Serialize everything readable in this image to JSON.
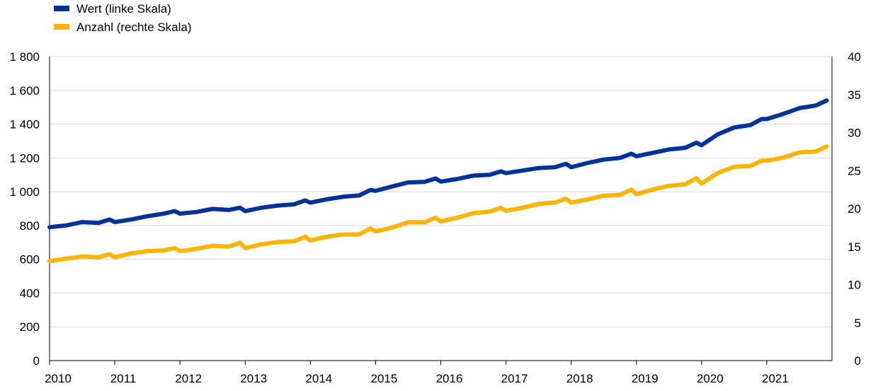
{
  "chart_data": {
    "type": "line",
    "legend_position": "top-left",
    "grid": true,
    "x_axis": {
      "range": [
        2010,
        2022
      ],
      "tick_labels": [
        "2010",
        "2011",
        "2012",
        "2013",
        "2014",
        "2015",
        "2016",
        "2017",
        "2018",
        "2019",
        "2020",
        "2021"
      ]
    },
    "y_left": {
      "range": [
        0,
        1800
      ],
      "tick_labels": [
        "0",
        "200",
        "400",
        "600",
        "800",
        "1 000",
        "1 200",
        "1 400",
        "1 600",
        "1 800"
      ]
    },
    "y_right": {
      "range": [
        0,
        40
      ],
      "tick_labels": [
        "0",
        "5",
        "10",
        "15",
        "20",
        "25",
        "30",
        "35",
        "40"
      ]
    },
    "series": [
      {
        "name": "Wert (linke Skala)",
        "axis": "left",
        "color": "#003299",
        "x": [
          2010.0,
          2010.25,
          2010.5,
          2010.75,
          2010.92,
          2011.0,
          2011.25,
          2011.5,
          2011.75,
          2011.92,
          2012.0,
          2012.25,
          2012.5,
          2012.75,
          2012.92,
          2013.0,
          2013.25,
          2013.5,
          2013.75,
          2013.92,
          2014.0,
          2014.25,
          2014.5,
          2014.75,
          2014.92,
          2015.0,
          2015.25,
          2015.5,
          2015.75,
          2015.92,
          2016.0,
          2016.25,
          2016.5,
          2016.75,
          2016.92,
          2017.0,
          2017.25,
          2017.5,
          2017.75,
          2017.92,
          2018.0,
          2018.25,
          2018.5,
          2018.75,
          2018.92,
          2019.0,
          2019.25,
          2019.5,
          2019.75,
          2019.92,
          2020.0,
          2020.25,
          2020.5,
          2020.75,
          2020.92,
          2021.0,
          2021.25,
          2021.5,
          2021.75,
          2021.92
        ],
        "y": [
          790,
          800,
          820,
          815,
          835,
          820,
          835,
          855,
          870,
          885,
          870,
          880,
          898,
          892,
          905,
          885,
          905,
          918,
          925,
          948,
          935,
          955,
          970,
          978,
          1010,
          1005,
          1030,
          1055,
          1058,
          1078,
          1060,
          1075,
          1095,
          1100,
          1120,
          1110,
          1125,
          1140,
          1145,
          1165,
          1145,
          1170,
          1190,
          1200,
          1225,
          1210,
          1230,
          1250,
          1260,
          1290,
          1275,
          1340,
          1380,
          1395,
          1430,
          1430,
          1460,
          1495,
          1510,
          1540
        ]
      },
      {
        "name": "Anzahl (rechte Skala)",
        "axis": "right",
        "color": "#ffb400",
        "x": [
          2010.0,
          2010.25,
          2010.5,
          2010.75,
          2010.92,
          2011.0,
          2011.25,
          2011.5,
          2011.75,
          2011.92,
          2012.0,
          2012.25,
          2012.5,
          2012.75,
          2012.92,
          2013.0,
          2013.25,
          2013.5,
          2013.75,
          2013.92,
          2014.0,
          2014.25,
          2014.5,
          2014.75,
          2014.92,
          2015.0,
          2015.25,
          2015.5,
          2015.75,
          2015.92,
          2016.0,
          2016.25,
          2016.5,
          2016.75,
          2016.92,
          2017.0,
          2017.25,
          2017.5,
          2017.75,
          2017.92,
          2018.0,
          2018.25,
          2018.5,
          2018.75,
          2018.92,
          2019.0,
          2019.25,
          2019.5,
          2019.75,
          2019.92,
          2020.0,
          2020.25,
          2020.5,
          2020.75,
          2020.92,
          2021.0,
          2021.25,
          2021.5,
          2021.75,
          2021.92
        ],
        "y": [
          13.1,
          13.4,
          13.7,
          13.6,
          14.0,
          13.6,
          14.1,
          14.4,
          14.5,
          14.8,
          14.4,
          14.7,
          15.1,
          15.0,
          15.5,
          14.8,
          15.3,
          15.6,
          15.7,
          16.3,
          15.8,
          16.3,
          16.6,
          16.6,
          17.4,
          17.0,
          17.5,
          18.2,
          18.2,
          18.8,
          18.3,
          18.8,
          19.4,
          19.6,
          20.1,
          19.7,
          20.1,
          20.6,
          20.8,
          21.3,
          20.8,
          21.2,
          21.7,
          21.8,
          22.5,
          21.9,
          22.5,
          23.0,
          23.2,
          24.0,
          23.3,
          24.7,
          25.5,
          25.6,
          26.3,
          26.3,
          26.7,
          27.4,
          27.5,
          28.2
        ]
      }
    ]
  }
}
